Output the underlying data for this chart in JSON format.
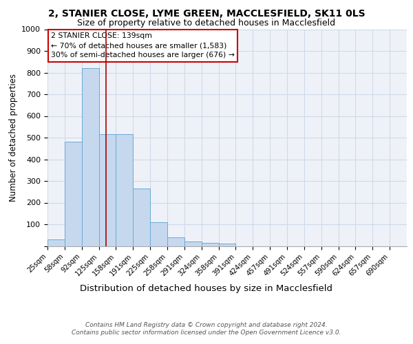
{
  "title1": "2, STANIER CLOSE, LYME GREEN, MACCLESFIELD, SK11 0LS",
  "title2": "Size of property relative to detached houses in Macclesfield",
  "xlabel": "Distribution of detached houses by size in Macclesfield",
  "ylabel": "Number of detached properties",
  "bar_values": [
    30,
    480,
    820,
    515,
    515,
    265,
    110,
    40,
    20,
    15,
    10,
    0,
    0,
    0,
    0,
    0,
    0,
    0,
    0,
    0,
    0
  ],
  "bar_labels": [
    "25sqm",
    "58sqm",
    "92sqm",
    "125sqm",
    "158sqm",
    "191sqm",
    "225sqm",
    "258sqm",
    "291sqm",
    "324sqm",
    "358sqm",
    "391sqm",
    "424sqm",
    "457sqm",
    "491sqm",
    "524sqm",
    "557sqm",
    "590sqm",
    "624sqm",
    "657sqm",
    "690sqm"
  ],
  "bar_color": "#c5d8ee",
  "bar_edge_color": "#6aaad4",
  "vline_color": "#aa0000",
  "vline_position": 3.42,
  "annotation_text": "2 STANIER CLOSE: 139sqm\n← 70% of detached houses are smaller (1,583)\n30% of semi-detached houses are larger (676) →",
  "box_facecolor": "white",
  "box_edgecolor": "#cc0000",
  "ylim": [
    0,
    1000
  ],
  "yticks": [
    0,
    100,
    200,
    300,
    400,
    500,
    600,
    700,
    800,
    900,
    1000
  ],
  "grid_color": "#d0d8e8",
  "bg_color": "#eef2f8",
  "footnote": "Contains HM Land Registry data © Crown copyright and database right 2024.\nContains public sector information licensed under the Open Government Licence v3.0."
}
